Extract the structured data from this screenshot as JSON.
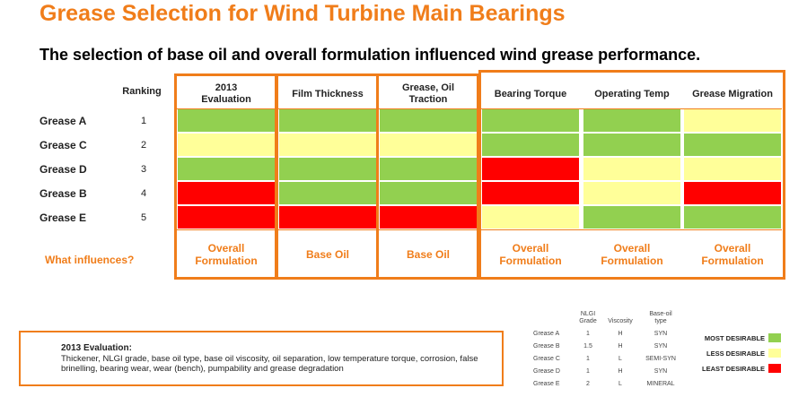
{
  "title": "Grease Selection for Wind Turbine Main Bearings",
  "subtitle": "The selection of base oil and overall formulation influenced wind grease performance.",
  "ranking_header": "Ranking",
  "columns": [
    "2013\nEvaluation",
    "Film Thickness",
    "Grease, Oil\nTraction",
    "Bearing Torque",
    "Operating Temp",
    "Grease Migration"
  ],
  "rows": [
    {
      "name": "Grease A",
      "rank": "1",
      "ratings": [
        "green",
        "green",
        "green",
        "green",
        "green",
        "yellow"
      ]
    },
    {
      "name": "Grease C",
      "rank": "2",
      "ratings": [
        "yellow",
        "yellow",
        "yellow",
        "green",
        "green",
        "green"
      ]
    },
    {
      "name": "Grease D",
      "rank": "3",
      "ratings": [
        "green",
        "green",
        "green",
        "red",
        "yellow",
        "yellow"
      ]
    },
    {
      "name": "Grease B",
      "rank": "4",
      "ratings": [
        "red",
        "green",
        "green",
        "red",
        "yellow",
        "red"
      ]
    },
    {
      "name": "Grease E",
      "rank": "5",
      "ratings": [
        "red",
        "red",
        "red",
        "yellow",
        "green",
        "green"
      ]
    }
  ],
  "influence_label": "What influences?",
  "influences": [
    "Overall\nFormulation",
    "Base Oil",
    "Base Oil",
    "Overall\nFormulation",
    "Overall\nFormulation",
    "Overall\nFormulation"
  ],
  "evaluation_box": {
    "title": "2013 Evaluation:",
    "text": "Thickener, NLGI grade, base oil type, base oil viscosity, oil separation, low temperature torque, corrosion, false brinelling, bearing wear, wear (bench), pumpability and grease degradation"
  },
  "mini_table": {
    "headers": [
      "NLGI\nGrade",
      "Viscosity",
      "Base-oil\ntype"
    ],
    "rows": [
      {
        "name": "Grease A",
        "nlgi": "1",
        "viscosity": "H",
        "base_oil": "SYN"
      },
      {
        "name": "Grease B",
        "nlgi": "1.5",
        "viscosity": "H",
        "base_oil": "SYN"
      },
      {
        "name": "Grease C",
        "nlgi": "1",
        "viscosity": "L",
        "base_oil": "SEMI-SYN"
      },
      {
        "name": "Grease D",
        "nlgi": "1",
        "viscosity": "H",
        "base_oil": "SYN"
      },
      {
        "name": "Grease E",
        "nlgi": "2",
        "viscosity": "L",
        "base_oil": "MINERAL"
      }
    ]
  },
  "legend": [
    {
      "label": "MOST DESIRABLE",
      "color": "#92d050"
    },
    {
      "label": "LESS DESIRABLE",
      "color": "#ffff99"
    },
    {
      "label": "LEAST DESIRABLE",
      "color": "#ff0000"
    }
  ],
  "colors": {
    "accent": "#f07d1a",
    "green": "#92d050",
    "yellow": "#ffff99",
    "red": "#ff0000"
  }
}
